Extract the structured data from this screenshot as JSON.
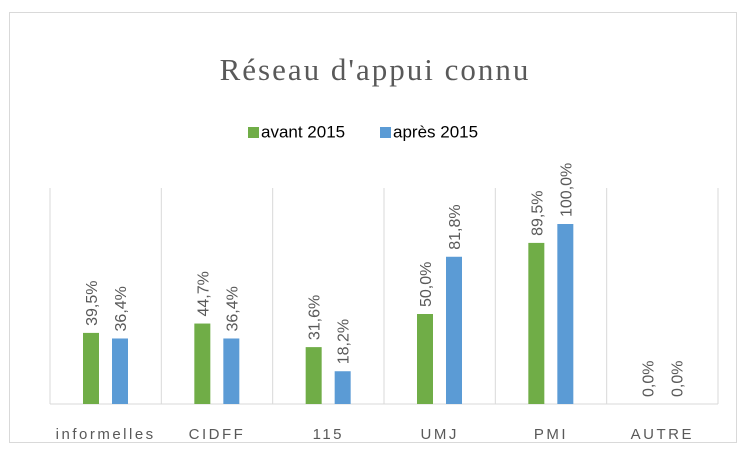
{
  "chart_data": {
    "type": "bar",
    "title": "Réseau d'appui connu",
    "categories": [
      "informelles",
      "CIDFF",
      "115",
      "UMJ",
      "PMI",
      "AUTRE"
    ],
    "series": [
      {
        "name": "avant 2015",
        "color": "#70ad47",
        "values": [
          39.5,
          44.7,
          31.6,
          50.0,
          89.5,
          0.0
        ],
        "value_labels": [
          "39,5%",
          "44,7%",
          "31,6%",
          "50,0%",
          "89,5%",
          "0,0%"
        ]
      },
      {
        "name": "après 2015",
        "color": "#5b9bd5",
        "values": [
          36.4,
          36.4,
          18.2,
          81.8,
          100.0,
          0.0
        ],
        "value_labels": [
          "36,4%",
          "36,4%",
          "18,2%",
          "81,8%",
          "100,0%",
          "0,0%"
        ]
      }
    ],
    "ylim": [
      0,
      120
    ],
    "legend": "top"
  }
}
